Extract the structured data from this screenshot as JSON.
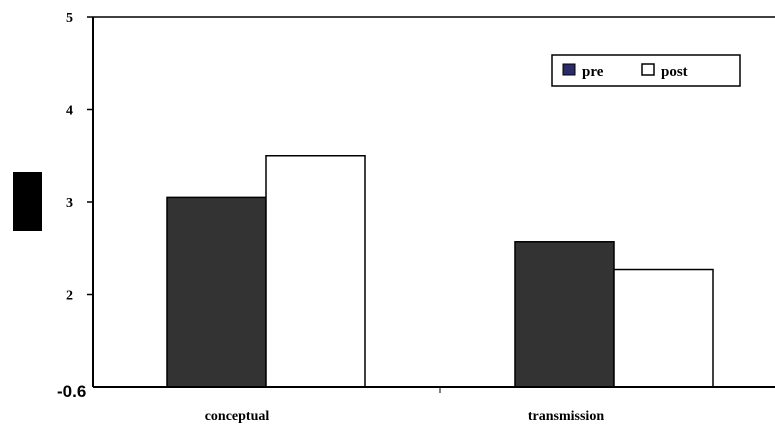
{
  "chart_data": {
    "type": "bar",
    "title": "",
    "xlabel": "",
    "ylabel": "",
    "categories": [
      "conceptual",
      "transmission"
    ],
    "series": [
      {
        "name": "pre",
        "values": [
          3.05,
          2.57
        ],
        "color": "#333333"
      },
      {
        "name": "post",
        "values": [
          3.5,
          2.27
        ],
        "color": "#ffffff"
      }
    ],
    "ylim": [
      1,
      5
    ],
    "y_ticks": [
      {
        "value": 2,
        "label": "2"
      },
      {
        "value": 3,
        "label": "3"
      },
      {
        "value": 4,
        "label": "4"
      },
      {
        "value": 5,
        "label": "5"
      }
    ],
    "origin_label": "-0.6",
    "legend_position": "top-right",
    "grid": false
  },
  "colors": {
    "axis": "#000000",
    "pre_fill": "#333333",
    "post_fill": "#ffffff",
    "legend_pre_swatch": "#2b2b6b",
    "ylabel_block": "#000000"
  }
}
